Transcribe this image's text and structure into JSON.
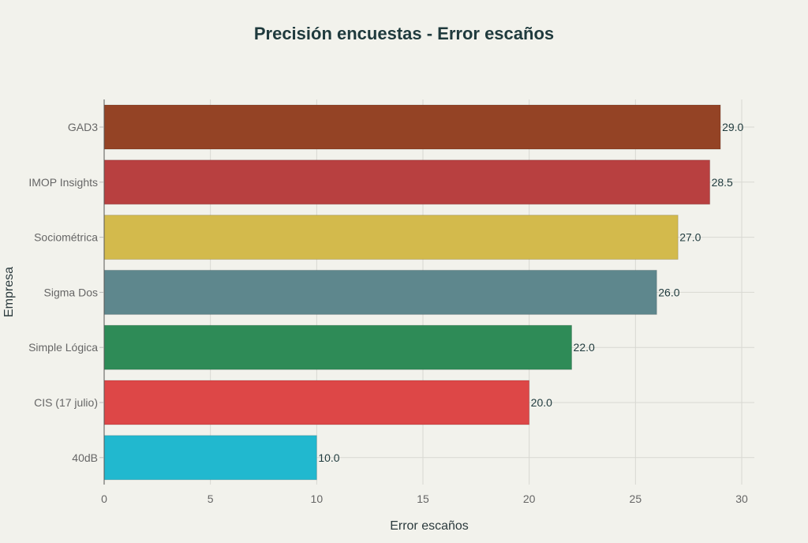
{
  "chart_data": {
    "type": "bar",
    "orientation": "horizontal",
    "title": "Precisión encuestas - Error escaños",
    "xlabel": "Error escaños",
    "ylabel": "Empresa",
    "xlim": [
      0,
      30.6
    ],
    "xticks": [
      0,
      5,
      10,
      15,
      20,
      25,
      30
    ],
    "grid": true,
    "categories": [
      "GAD3",
      "IMOP Insights",
      "Sociométrica",
      "Sigma Dos",
      "Simple Lógica",
      "CIS (17 julio)",
      "40dB"
    ],
    "values": [
      29.0,
      28.5,
      27.0,
      26.0,
      22.0,
      20.0,
      10.0
    ],
    "labels": [
      "29.0",
      "28.5",
      "27.0",
      "26.0",
      "22.0",
      "20.0",
      "10.0"
    ],
    "colors": [
      "#944325",
      "#B84040",
      "#D3BA4C",
      "#5E878D",
      "#2E8B57",
      "#DD4747",
      "#21B8CF"
    ]
  }
}
